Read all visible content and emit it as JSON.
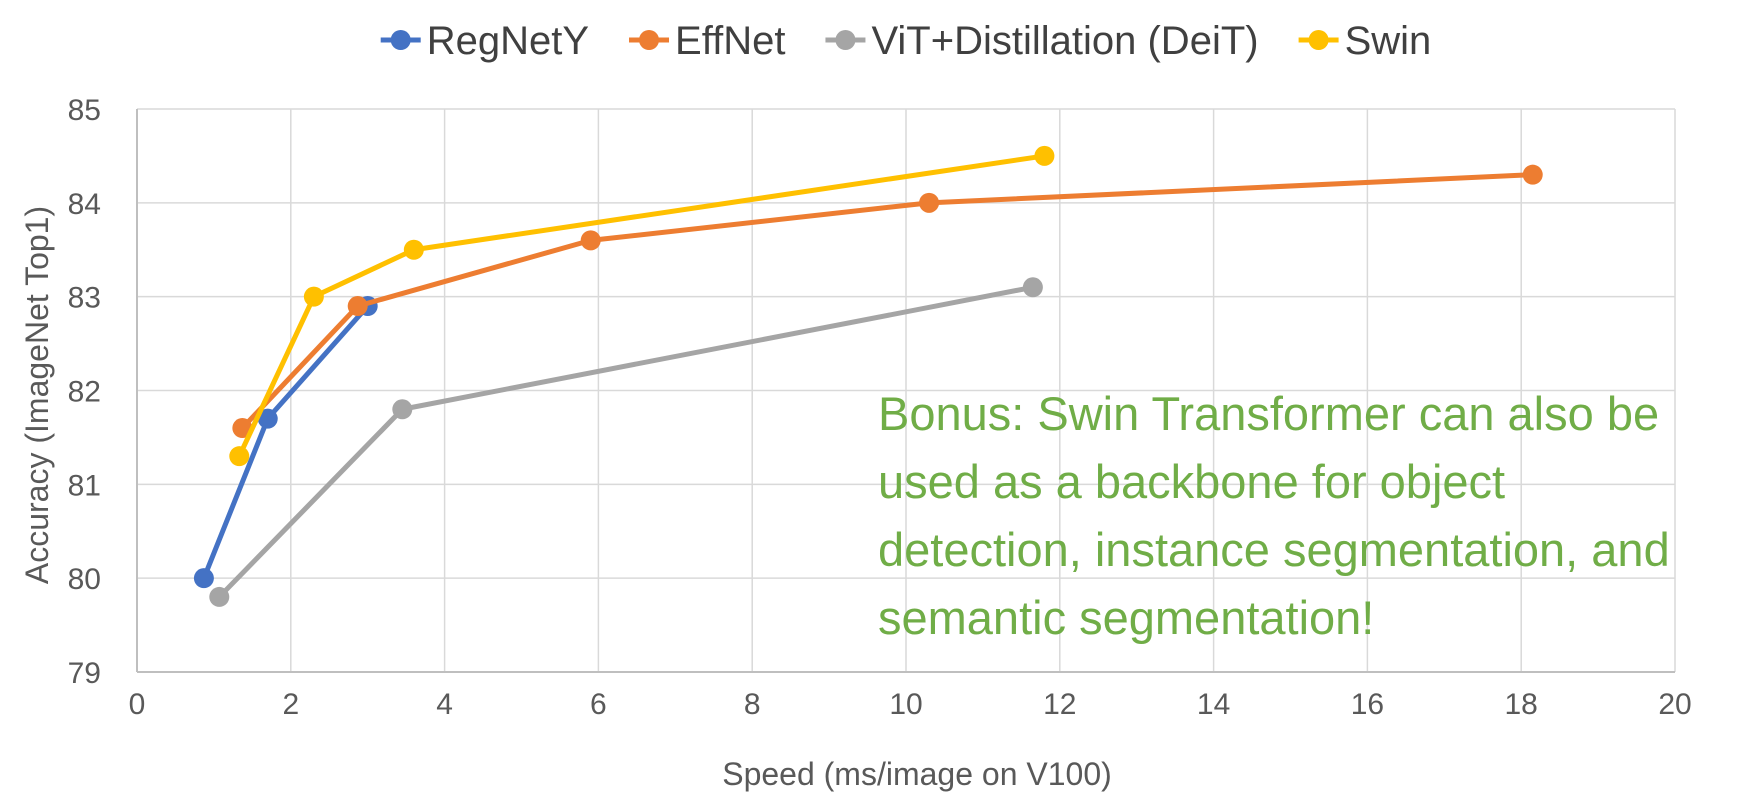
{
  "chart_data": {
    "type": "line",
    "xlabel": "Speed (ms/image on V100)",
    "ylabel": "Accuracy (ImageNet Top1)",
    "xlim": [
      0,
      20
    ],
    "ylim": [
      79,
      85
    ],
    "xticks": [
      "0",
      "2",
      "4",
      "6",
      "8",
      "10",
      "12",
      "14",
      "16",
      "18",
      "20"
    ],
    "yticks": [
      "79",
      "80",
      "81",
      "82",
      "83",
      "84",
      "85"
    ],
    "grid": true,
    "legend_position": "top",
    "series": [
      {
        "name": "RegNetY",
        "color": "#4472c4",
        "points": [
          [
            0.87,
            80.0
          ],
          [
            1.7,
            81.7
          ],
          [
            3.0,
            82.9
          ]
        ]
      },
      {
        "name": "EffNet",
        "color": "#ed7d31",
        "points": [
          [
            1.37,
            81.6
          ],
          [
            2.87,
            82.9
          ],
          [
            5.9,
            83.6
          ],
          [
            10.3,
            84.0
          ],
          [
            18.15,
            84.3
          ]
        ]
      },
      {
        "name": "ViT+Distillation (DeiT)",
        "color": "#a5a5a5",
        "points": [
          [
            1.07,
            79.8
          ],
          [
            3.45,
            81.8
          ],
          [
            11.65,
            83.1
          ]
        ]
      },
      {
        "name": "Swin",
        "color": "#ffc000",
        "points": [
          [
            1.33,
            81.3
          ],
          [
            2.3,
            83.0
          ],
          [
            3.6,
            83.5
          ],
          [
            11.8,
            84.5
          ]
        ]
      }
    ],
    "annotation": "Bonus: Swin Transformer can also be used as a backbone for object detection, instance segmentation, and semantic segmentation!"
  }
}
